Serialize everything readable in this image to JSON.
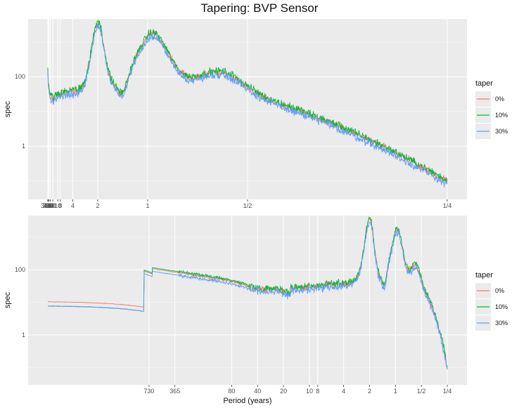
{
  "chart_data": [
    {
      "type": "line",
      "title": "Tapering: BVP Sensor",
      "xlabel": "",
      "ylabel": "spec",
      "y_scale": "log",
      "ylim": [
        0.08,
        6000
      ],
      "y_ticks": [
        {
          "value": 1,
          "label": "1"
        },
        {
          "value": 100,
          "label": "100"
        }
      ],
      "x_scale": "reciprocal (frequency)",
      "x_ticks": [
        {
          "value": 3650,
          "label": "3650"
        },
        {
          "value": 730,
          "label": "730"
        },
        {
          "value": 365,
          "label": "365"
        },
        {
          "value": 80,
          "label": "80"
        },
        {
          "value": 40,
          "label": "40"
        },
        {
          "value": 20,
          "label": "20"
        },
        {
          "value": 10,
          "label": "10"
        },
        {
          "value": 8,
          "label": "8"
        },
        {
          "value": 4,
          "label": "4"
        },
        {
          "value": 2,
          "label": "2"
        },
        {
          "value": 1,
          "label": "1"
        },
        {
          "value": 0.5,
          "label": "1/2"
        },
        {
          "value": 0.25,
          "label": "1/4"
        }
      ],
      "legend": {
        "title": "taper",
        "position": "right"
      },
      "series": [
        {
          "name": "0%",
          "color": "#F8766D"
        },
        {
          "name": "10%",
          "color": "#00BA38"
        },
        {
          "name": "30%",
          "color": "#619CFF"
        }
      ],
      "grid": true
    },
    {
      "type": "line",
      "title": "",
      "xlabel": "Period (years)",
      "ylabel": "spec",
      "y_scale": "log",
      "ylim": [
        0.08,
        6000
      ],
      "y_ticks": [
        {
          "value": 1,
          "label": "1"
        },
        {
          "value": 100,
          "label": "100"
        }
      ],
      "x_scale": "log",
      "x_ticks": [
        {
          "value": 730,
          "label": "730"
        },
        {
          "value": 365,
          "label": "365"
        },
        {
          "value": 80,
          "label": "80"
        },
        {
          "value": 40,
          "label": "40"
        },
        {
          "value": 20,
          "label": "20"
        },
        {
          "value": 10,
          "label": "10"
        },
        {
          "value": 8,
          "label": "8"
        },
        {
          "value": 4,
          "label": "4"
        },
        {
          "value": 2,
          "label": "2"
        },
        {
          "value": 1,
          "label": "1"
        },
        {
          "value": 0.5,
          "label": "1/2"
        },
        {
          "value": 0.25,
          "label": "1/4"
        }
      ],
      "legend": {
        "title": "taper",
        "position": "right"
      },
      "series": [
        {
          "name": "0%",
          "color": "#F8766D"
        },
        {
          "name": "10%",
          "color": "#00BA38"
        },
        {
          "name": "30%",
          "color": "#619CFF"
        }
      ],
      "grid": true
    }
  ]
}
